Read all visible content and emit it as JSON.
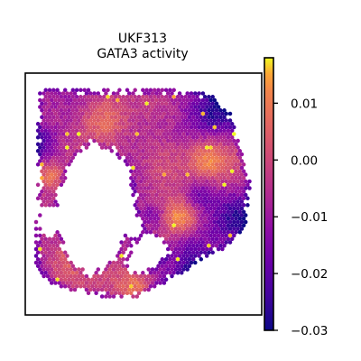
{
  "chart_data": {
    "type": "heatmap",
    "title_lines": [
      "UKF313",
      "GATA3 activity"
    ],
    "xlabel": "",
    "ylabel": "",
    "grid": false,
    "colormap": "plasma",
    "colorbar": {
      "range": [
        -0.03,
        0.018
      ],
      "ticks": [
        0.01,
        0.0,
        -0.01,
        -0.02,
        -0.03
      ],
      "tick_labels": [
        "0.01",
        "0.00",
        "−0.01",
        "−0.02",
        "−0.03"
      ]
    },
    "value_summary": {
      "min": -0.03,
      "max": 0.018,
      "typical_range": [
        -0.02,
        0.008
      ]
    }
  },
  "colors": {
    "frame": "#000000",
    "background": "#ffffff"
  }
}
